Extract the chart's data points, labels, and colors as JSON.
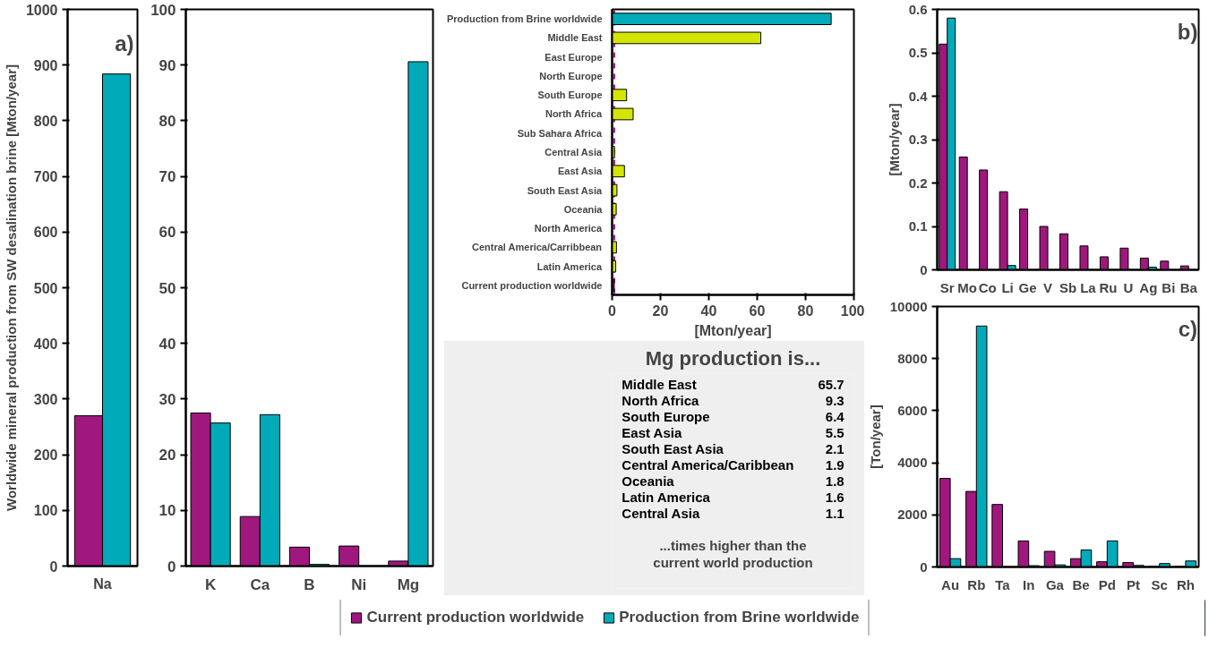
{
  "chart_data": [
    {
      "type": "bar",
      "ylabel": "Worldwide mineral production from SW desalination brine [Mton/year]",
      "annotations": [
        "a)"
      ],
      "categories": [
        "Na"
      ],
      "ylim": [
        0,
        1000
      ],
      "yticks": [
        0,
        100,
        200,
        300,
        400,
        500,
        600,
        700,
        800,
        900,
        1000
      ],
      "grid": false,
      "series": [
        {
          "color": "#a0177e",
          "values": [
            270
          ]
        },
        {
          "color": "#00aab9",
          "values": [
            884
          ]
        }
      ]
    },
    {
      "type": "bar",
      "categories": [
        "K",
        "Ca",
        "B",
        "Ni",
        "Mg"
      ],
      "ylim": [
        0,
        100
      ],
      "yticks": [
        0,
        10,
        20,
        30,
        40,
        50,
        60,
        70,
        80,
        90,
        100
      ],
      "grid": false,
      "legend": "bottom",
      "series": [
        {
          "name": "Current production worldwide",
          "color": "#a0177e",
          "values": [
            27.5,
            8.9,
            3.4,
            3.6,
            0.9
          ]
        },
        {
          "name": "Production from Brine worldwide",
          "color": "#00aab9",
          "values": [
            25.7,
            27.2,
            0.3,
            null,
            90.6
          ]
        }
      ]
    },
    {
      "type": "bar",
      "orientation": "horizontal",
      "xlabel": "[Mton/year]",
      "xlim": [
        0,
        100
      ],
      "xticks": [
        0,
        20,
        40,
        60,
        80,
        100
      ],
      "grid": false,
      "categories": [
        "Production from Brine worldwide",
        "Middle East",
        "East Europe",
        "North Europe",
        "South Europe",
        "North Africa",
        "Sub Sahara Africa",
        "Central Asia",
        "East Asia",
        "South East Asia",
        "Oceania",
        "North America",
        "Central America/Carribbean",
        "Latin America",
        "Current production worldwide"
      ],
      "values": [
        90.6,
        61.5,
        null,
        null,
        6.0,
        8.7,
        null,
        1.0,
        5.1,
        2.0,
        1.7,
        null,
        1.8,
        1.5,
        0.9
      ],
      "colors": [
        "#00aab9",
        "#d4e600",
        "#d4e600",
        "#d4e600",
        "#d4e600",
        "#d4e600",
        "#d4e600",
        "#d4e600",
        "#d4e600",
        "#d4e600",
        "#d4e600",
        "#d4e600",
        "#d4e600",
        "#d4e600",
        "#a0177e"
      ],
      "ref_lines": [
        {
          "axis": "x",
          "value": 0.9,
          "color": "#a0177e",
          "line_style": "dashed"
        }
      ]
    },
    {
      "type": "other",
      "title": "Mg production is...",
      "data_labels": true,
      "categories": [
        "Middle East",
        "North Africa",
        "South Europe",
        "East Asia",
        "South East Asia",
        "Central America/Caribbean",
        "Oceania",
        "Latin America",
        "Central Asia"
      ],
      "values": [
        65.7,
        9.3,
        6.4,
        5.5,
        2.1,
        1.9,
        1.8,
        1.6,
        1.1
      ],
      "annotations": [
        "...times higher than the",
        "current world production"
      ]
    },
    {
      "type": "bar",
      "ylabel": "[Mton/year]",
      "annotations": [
        "b)"
      ],
      "categories": [
        "Sr",
        "Mo",
        "Co",
        "Li",
        "Ge",
        "V",
        "Sb",
        "La",
        "Ru",
        "U",
        "Ag",
        "Bi",
        "Ba"
      ],
      "ylim": [
        0,
        0.6
      ],
      "yticks": [
        {
          "value": 0,
          "label": "0"
        },
        0.1,
        0.2,
        0.3,
        0.4,
        0.5,
        0.6
      ],
      "grid": false,
      "series": [
        {
          "color": "#a0177e",
          "values": [
            0.52,
            0.26,
            0.23,
            0.18,
            0.14,
            0.1,
            0.083,
            0.055,
            0.03,
            0.05,
            0.027,
            0.02,
            0.009
          ]
        },
        {
          "color": "#00aab9",
          "values": [
            0.58,
            null,
            null,
            0.01,
            null,
            null,
            null,
            null,
            null,
            null,
            0.006,
            null,
            null
          ]
        }
      ]
    },
    {
      "type": "bar",
      "ylabel": "[Ton/year]",
      "annotations": [
        "c)"
      ],
      "categories": [
        "Au",
        "Rb",
        "Ta",
        "In",
        "Ga",
        "Be",
        "Pd",
        "Pt",
        "Sc",
        "Rh"
      ],
      "ylim": [
        0,
        10000
      ],
      "yticks": [
        0,
        2000,
        4000,
        6000,
        8000,
        10000
      ],
      "grid": false,
      "series": [
        {
          "color": "#a0177e",
          "values": [
            3400,
            2900,
            2400,
            1000,
            600,
            320,
            200,
            170,
            20,
            20
          ]
        },
        {
          "color": "#00aab9",
          "values": [
            320,
            9250,
            null,
            50,
            80,
            650,
            1000,
            60,
            130,
            230
          ]
        }
      ]
    }
  ]
}
